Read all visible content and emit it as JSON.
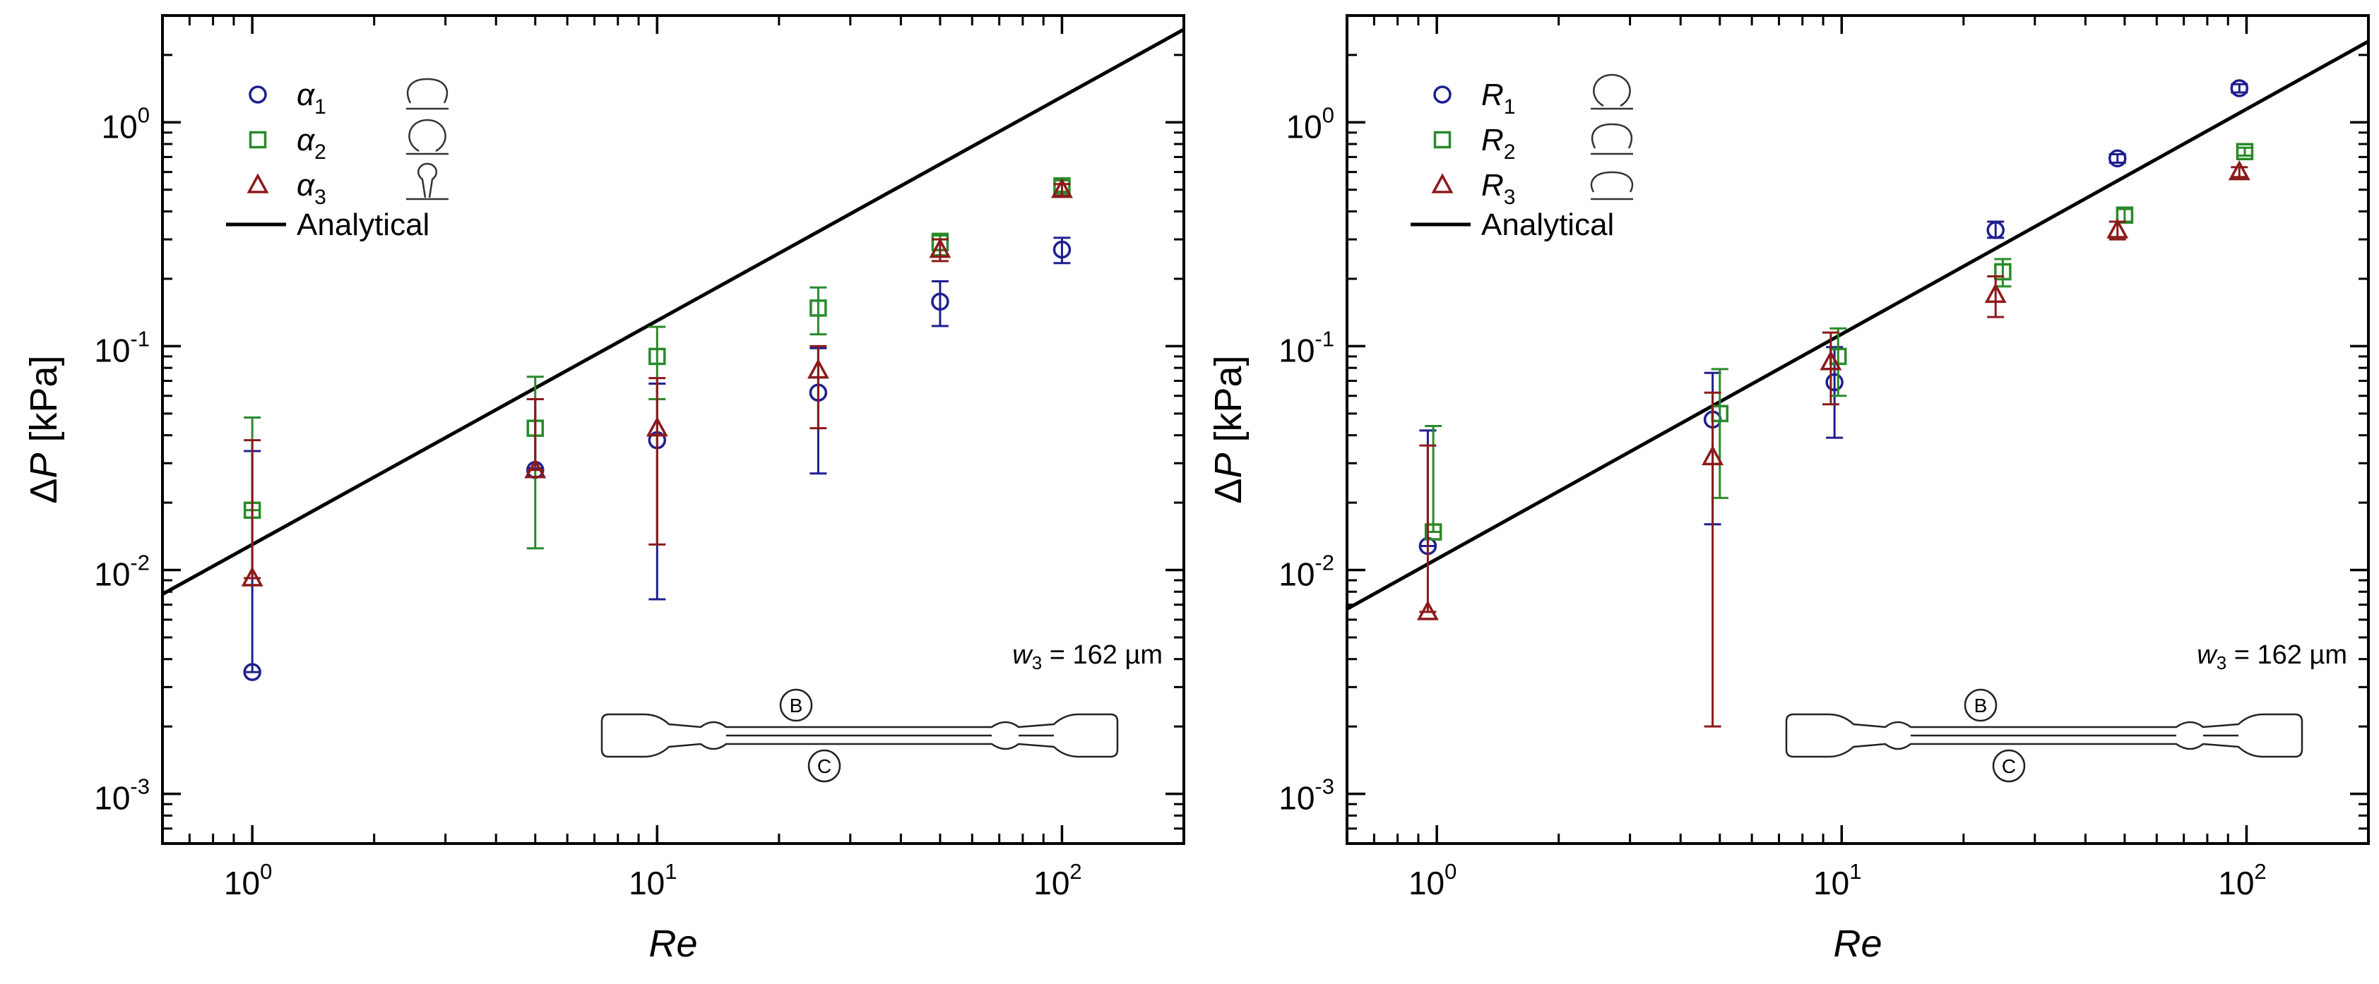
{
  "figure": {
    "colors": {
      "s1": "#1f1f8f",
      "s2": "#2a8a2a",
      "s3": "#8b1a1a",
      "line": "#000000"
    },
    "axis": {
      "ylabel_prefix": "Δ",
      "ylabel_var": "P",
      "ylabel_unit": " [kPa]",
      "xlabel": "Re"
    }
  },
  "chart_data": [
    {
      "type": "scatter",
      "panel": "left",
      "xscale": "log",
      "yscale": "log",
      "xlim": [
        0.6,
        200
      ],
      "ylim": [
        0.0006,
        3
      ],
      "xlabel": "Re",
      "ylabel": "ΔP [kPa]",
      "x_ticks": [
        1,
        10,
        100
      ],
      "x_tick_labels": [
        {
          "base": "10",
          "exp": "0"
        },
        {
          "base": "10",
          "exp": "1"
        },
        {
          "base": "10",
          "exp": "2"
        }
      ],
      "y_ticks": [
        0.001,
        0.01,
        0.1,
        1
      ],
      "y_tick_labels": [
        {
          "base": "10",
          "exp": "-3"
        },
        {
          "base": "10",
          "exp": "-2"
        },
        {
          "base": "10",
          "exp": "-1"
        },
        {
          "base": "10",
          "exp": "0"
        }
      ],
      "legend_position": "top-left",
      "series": [
        {
          "name": "α1",
          "label_base": "α",
          "label_sub": "1",
          "marker": "circle",
          "color": "#1f1f8f",
          "shape": "constricted",
          "points": [
            {
              "x": 1,
              "y": 0.0035,
              "lo": 0.0035,
              "hi": 0.034
            },
            {
              "x": 5,
              "y": 0.028,
              "lo": 0.0285,
              "hi": 0.058
            },
            {
              "x": 10,
              "y": 0.038,
              "lo": 0.0074,
              "hi": 0.068
            },
            {
              "x": 25,
              "y": 0.062,
              "lo": 0.027,
              "hi": 0.098
            },
            {
              "x": 50,
              "y": 0.158,
              "lo": 0.123,
              "hi": 0.195
            },
            {
              "x": 100,
              "y": 0.27,
              "lo": 0.235,
              "hi": 0.305
            }
          ]
        },
        {
          "name": "α2",
          "label_base": "α",
          "label_sub": "2",
          "marker": "square",
          "color": "#2a8a2a",
          "shape": "round",
          "points": [
            {
              "x": 1,
              "y": 0.0185,
              "lo": 0.0185,
              "hi": 0.048
            },
            {
              "x": 5,
              "y": 0.043,
              "lo": 0.0125,
              "hi": 0.073
            },
            {
              "x": 10,
              "y": 0.09,
              "lo": 0.058,
              "hi": 0.122
            },
            {
              "x": 25,
              "y": 0.148,
              "lo": 0.113,
              "hi": 0.183
            },
            {
              "x": 50,
              "y": 0.29,
              "lo": 0.255,
              "hi": 0.318
            },
            {
              "x": 100,
              "y": 0.52,
              "lo": 0.49,
              "hi": 0.55
            }
          ]
        },
        {
          "name": "α3",
          "label_base": "α",
          "label_sub": "3",
          "marker": "triangle",
          "color": "#8b1a1a",
          "shape": "teardrop",
          "points": [
            {
              "x": 1,
              "y": 0.0092,
              "lo": 0.0092,
              "hi": 0.038
            },
            {
              "x": 5,
              "y": 0.028,
              "lo": 0.028,
              "hi": 0.058
            },
            {
              "x": 10,
              "y": 0.043,
              "lo": 0.013,
              "hi": 0.072
            },
            {
              "x": 25,
              "y": 0.078,
              "lo": 0.043,
              "hi": 0.1
            },
            {
              "x": 50,
              "y": 0.27,
              "lo": 0.24,
              "hi": 0.3
            },
            {
              "x": 100,
              "y": 0.5,
              "lo": 0.47,
              "hi": 0.53
            }
          ]
        }
      ],
      "analytical": {
        "name": "Analytical",
        "x": [
          0.6,
          200
        ],
        "y": [
          0.0078,
          2.6
        ]
      },
      "annotation": {
        "base": "w",
        "sub": "3",
        "text": " = 162 µm"
      },
      "inset": {
        "top_label": "B",
        "bottom_label": "C"
      }
    },
    {
      "type": "scatter",
      "panel": "right",
      "xscale": "log",
      "yscale": "log",
      "xlim": [
        0.6,
        200
      ],
      "ylim": [
        0.0006,
        3
      ],
      "xlabel": "Re",
      "ylabel": "ΔP [kPa]",
      "x_ticks": [
        1,
        10,
        100
      ],
      "x_tick_labels": [
        {
          "base": "10",
          "exp": "0"
        },
        {
          "base": "10",
          "exp": "1"
        },
        {
          "base": "10",
          "exp": "2"
        }
      ],
      "y_ticks": [
        0.001,
        0.01,
        0.1,
        1
      ],
      "y_tick_labels": [
        {
          "base": "10",
          "exp": "-3"
        },
        {
          "base": "10",
          "exp": "-2"
        },
        {
          "base": "10",
          "exp": "-1"
        },
        {
          "base": "10",
          "exp": "0"
        }
      ],
      "legend_position": "top-left",
      "series": [
        {
          "name": "R1",
          "label_base": "R",
          "label_sub": "1",
          "marker": "circle",
          "color": "#1f1f8f",
          "shape": "round",
          "points": [
            {
              "x": 0.95,
              "y": 0.0128,
              "lo": 0.0128,
              "hi": 0.042
            },
            {
              "x": 4.8,
              "y": 0.047,
              "lo": 0.016,
              "hi": 0.076
            },
            {
              "x": 9.6,
              "y": 0.069,
              "lo": 0.039,
              "hi": 0.099
            },
            {
              "x": 24,
              "y": 0.33,
              "lo": 0.305,
              "hi": 0.36
            },
            {
              "x": 48,
              "y": 0.69,
              "lo": 0.66,
              "hi": 0.72
            },
            {
              "x": 96,
              "y": 1.42,
              "lo": 1.36,
              "hi": 1.48
            }
          ]
        },
        {
          "name": "R2",
          "label_base": "R",
          "label_sub": "2",
          "marker": "square",
          "color": "#2a8a2a",
          "shape": "constricted",
          "points": [
            {
              "x": 0.98,
              "y": 0.0148,
              "lo": 0.0148,
              "hi": 0.044
            },
            {
              "x": 5,
              "y": 0.05,
              "lo": 0.021,
              "hi": 0.079
            },
            {
              "x": 9.8,
              "y": 0.09,
              "lo": 0.06,
              "hi": 0.12
            },
            {
              "x": 25,
              "y": 0.215,
              "lo": 0.185,
              "hi": 0.245
            },
            {
              "x": 50,
              "y": 0.385,
              "lo": 0.36,
              "hi": 0.41
            },
            {
              "x": 99,
              "y": 0.74,
              "lo": 0.71,
              "hi": 0.77
            }
          ]
        },
        {
          "name": "R3",
          "label_base": "R",
          "label_sub": "3",
          "marker": "triangle",
          "color": "#8b1a1a",
          "shape": "wide",
          "points": [
            {
              "x": 0.95,
              "y": 0.0065,
              "lo": 0.0065,
              "hi": 0.036
            },
            {
              "x": 4.8,
              "y": 0.032,
              "lo": 0.002,
              "hi": 0.062
            },
            {
              "x": 9.4,
              "y": 0.085,
              "lo": 0.055,
              "hi": 0.115
            },
            {
              "x": 24,
              "y": 0.17,
              "lo": 0.135,
              "hi": 0.205
            },
            {
              "x": 48,
              "y": 0.33,
              "lo": 0.3,
              "hi": 0.36
            },
            {
              "x": 96,
              "y": 0.6,
              "lo": 0.57,
              "hi": 0.63
            }
          ]
        }
      ],
      "analytical": {
        "name": "Analytical",
        "x": [
          0.6,
          200
        ],
        "y": [
          0.0067,
          2.3
        ]
      },
      "annotation": {
        "base": "w",
        "sub": "3",
        "text": " = 162 µm"
      },
      "inset": {
        "top_label": "B",
        "bottom_label": "C"
      }
    }
  ]
}
